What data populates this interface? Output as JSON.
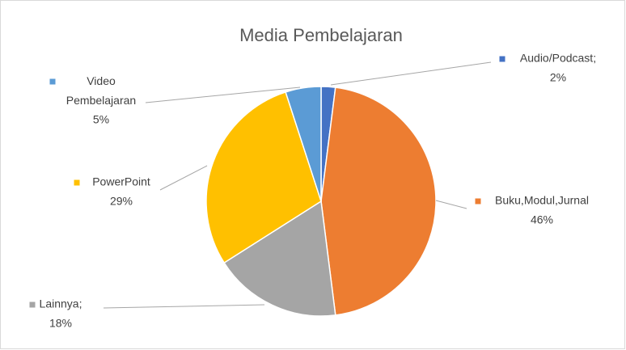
{
  "chart_data": {
    "type": "pie",
    "title": "Media Pembelajaran",
    "categories": [
      "Audio/Podcast;",
      "Buku,Modul,Jurnal",
      "Lainnya;",
      "PowerPoint",
      "Video Pembelajaran"
    ],
    "values": [
      2,
      46,
      18,
      29,
      5
    ],
    "value_labels": [
      "2%",
      "46%",
      "18%",
      "29%",
      "5%"
    ],
    "colors": [
      "#4472c4",
      "#ed7d31",
      "#a5a5a5",
      "#ffc000",
      "#5b9bd5"
    ]
  }
}
